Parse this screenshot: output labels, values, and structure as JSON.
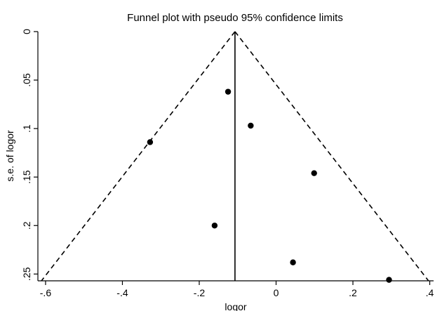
{
  "chart_data": {
    "type": "scatter",
    "title": "Funnel plot with pseudo 95% confidence limits",
    "xlabel": "logor",
    "ylabel": "s.e. of logor",
    "xlim": [
      -0.62,
      0.41
    ],
    "ylim": [
      0,
      0.257
    ],
    "y_reversed": true,
    "grid": false,
    "x_ticks": [
      -0.6,
      -0.4,
      -0.2,
      0,
      0.2,
      0.4
    ],
    "x_tick_labels": [
      "-.6",
      "-.4",
      "-.2",
      "0",
      ".2",
      ".4"
    ],
    "y_ticks": [
      0,
      0.05,
      0.1,
      0.15,
      0.2,
      0.25
    ],
    "y_tick_labels": [
      "0",
      ".05",
      ".1",
      ".15",
      ".2",
      ".25"
    ],
    "pooled_estimate": -0.107,
    "se_max": 0.257,
    "ci_multiplier": 1.96,
    "points": [
      {
        "x": -0.125,
        "y": 0.062
      },
      {
        "x": -0.066,
        "y": 0.097
      },
      {
        "x": -0.328,
        "y": 0.114
      },
      {
        "x": 0.099,
        "y": 0.146
      },
      {
        "x": -0.16,
        "y": 0.2
      },
      {
        "x": 0.044,
        "y": 0.238
      },
      {
        "x": 0.294,
        "y": 0.256
      }
    ],
    "colors": {
      "points": "#000000",
      "axis": "#000000",
      "funnel": "#000000"
    }
  }
}
